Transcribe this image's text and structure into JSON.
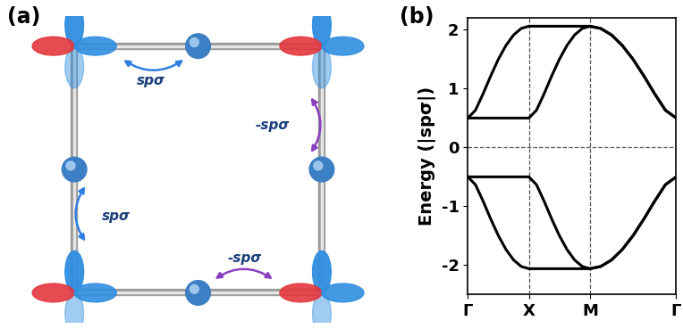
{
  "diagram": {
    "panel_label": "(a)",
    "hoppings": [
      "spσ",
      "spσ",
      "-spσ",
      "-spσ"
    ]
  },
  "chart_data": {
    "type": "line",
    "panel_label": "(b)",
    "y_label": "Energy (|spσ|)",
    "x": [
      0,
      0.125,
      0.25,
      0.375,
      0.5,
      0.625,
      0.75,
      0.875,
      1,
      1.125,
      1.25,
      1.375,
      1.5,
      1.625,
      1.75,
      1.875,
      2,
      2.177,
      2.354,
      2.53,
      2.707,
      2.884,
      3.061,
      3.237,
      3.414
    ],
    "series": [
      {
        "color": "#000000",
        "values": [
          0.5,
          0.634,
          0.914,
          1.218,
          1.5,
          1.736,
          1.914,
          2.024,
          2.062,
          2.062,
          2.062,
          2.062,
          2.062,
          2.062,
          2.062,
          2.062,
          2.062,
          2.024,
          1.914,
          1.736,
          1.5,
          1.218,
          0.914,
          0.634,
          0.5
        ]
      },
      {
        "color": "#000000",
        "values": [
          0.5,
          0.5,
          0.5,
          0.5,
          0.5,
          0.5,
          0.5,
          0.5,
          0.5,
          0.634,
          0.914,
          1.218,
          1.5,
          1.736,
          1.914,
          2.024,
          2.062,
          2.024,
          1.914,
          1.736,
          1.5,
          1.218,
          0.914,
          0.634,
          0.5
        ]
      },
      {
        "color": "#000000",
        "values": [
          -0.5,
          -0.634,
          -0.914,
          -1.218,
          -1.5,
          -1.736,
          -1.914,
          -2.024,
          -2.062,
          -2.062,
          -2.062,
          -2.062,
          -2.062,
          -2.062,
          -2.062,
          -2.062,
          -2.062,
          -2.024,
          -1.914,
          -1.736,
          -1.5,
          -1.218,
          -0.914,
          -0.634,
          -0.5
        ]
      },
      {
        "color": "#000000",
        "values": [
          -0.5,
          -0.5,
          -0.5,
          -0.5,
          -0.5,
          -0.5,
          -0.5,
          -0.5,
          -0.5,
          -0.634,
          -0.914,
          -1.218,
          -1.5,
          -1.736,
          -1.914,
          -2.024,
          -2.062,
          -2.024,
          -1.914,
          -1.736,
          -1.5,
          -1.218,
          -0.914,
          -0.634,
          -0.5
        ]
      }
    ],
    "xlim": [
      0,
      3.414
    ],
    "xticks": [
      {
        "value": 0,
        "label": "Γ"
      },
      {
        "value": 1,
        "label": "X"
      },
      {
        "value": 2,
        "label": "M"
      },
      {
        "value": 3.414,
        "label": "Γ"
      }
    ],
    "ylim": [
      -2.5,
      2.2
    ],
    "yticks": [
      -2,
      -1,
      0,
      1,
      2
    ],
    "hlines": [
      0
    ]
  }
}
